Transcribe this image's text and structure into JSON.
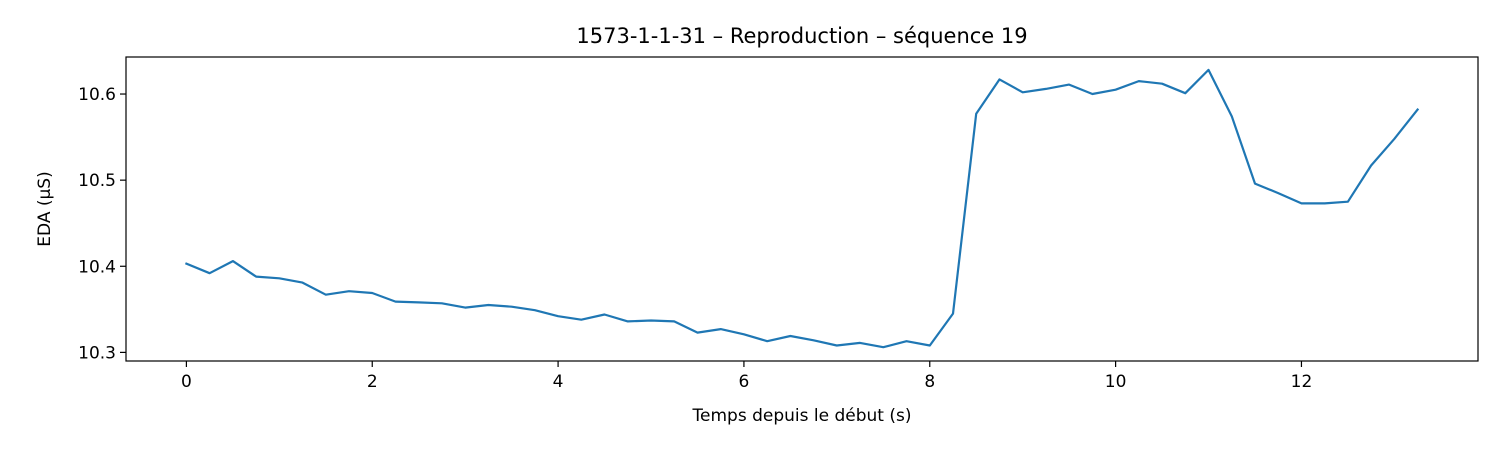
{
  "chart_data": {
    "type": "line",
    "title": "1573-1-1-31 – Reproduction – séquence 19",
    "xlabel": "Temps depuis le début (s)",
    "ylabel": "EDA (µS)",
    "xlim": [
      -0.65,
      13.9
    ],
    "ylim": [
      10.29,
      10.643
    ],
    "xticks": [
      0,
      2,
      4,
      6,
      8,
      10,
      12
    ],
    "yticks": [
      10.3,
      10.4,
      10.5,
      10.6
    ],
    "xtick_labels": [
      "0",
      "2",
      "4",
      "6",
      "8",
      "10",
      "12"
    ],
    "ytick_labels": [
      "10.3",
      "10.4",
      "10.5",
      "10.6"
    ],
    "grid": false,
    "series": [
      {
        "color": "#1f77b4",
        "x": [
          0,
          0.25,
          0.5,
          0.75,
          1,
          1.25,
          1.5,
          1.75,
          2,
          2.25,
          2.5,
          2.75,
          3,
          3.25,
          3.5,
          3.75,
          4,
          4.25,
          4.5,
          4.75,
          5,
          5.25,
          5.5,
          5.75,
          6,
          6.25,
          6.5,
          6.75,
          7,
          7.25,
          7.5,
          7.75,
          8,
          8.25,
          8.5,
          8.75,
          9,
          9.25,
          9.5,
          9.75,
          10,
          10.25,
          10.5,
          10.75,
          11,
          11.25,
          11.5,
          11.75,
          12,
          12.25,
          12.5,
          12.75,
          13,
          13.25
        ],
        "values": [
          10.403,
          10.392,
          10.406,
          10.388,
          10.386,
          10.381,
          10.367,
          10.371,
          10.369,
          10.359,
          10.358,
          10.357,
          10.352,
          10.355,
          10.353,
          10.349,
          10.342,
          10.338,
          10.344,
          10.336,
          10.337,
          10.336,
          10.323,
          10.327,
          10.321,
          10.313,
          10.319,
          10.314,
          10.308,
          10.311,
          10.306,
          10.313,
          10.308,
          10.345,
          10.577,
          10.617,
          10.602,
          10.606,
          10.611,
          10.6,
          10.605,
          10.615,
          10.612,
          10.601,
          10.628,
          10.574,
          10.496,
          10.485,
          10.473,
          10.473,
          10.475,
          10.517,
          10.548,
          10.582
        ]
      }
    ]
  }
}
